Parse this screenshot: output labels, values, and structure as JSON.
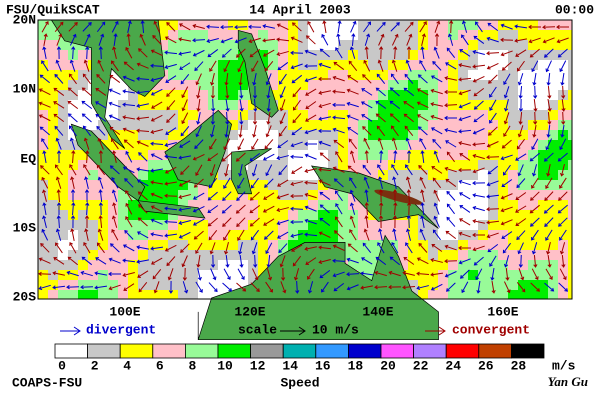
{
  "header": {
    "left": "FSU/QuikSCAT",
    "center": "14 April 2003",
    "right": "00:00"
  },
  "lat_labels": [
    "20N",
    "10N",
    "EQ",
    "10S",
    "20S"
  ],
  "lon_labels": [
    "100E",
    "120E",
    "140E",
    "160E"
  ],
  "legend": {
    "divergent": "divergent",
    "scale": "scale",
    "scale_value": "10 m/s",
    "convergent": "convergent"
  },
  "colorbar": {
    "values": [
      0,
      2,
      4,
      6,
      8,
      10,
      12,
      14,
      16,
      18,
      20,
      22,
      24,
      26,
      28
    ],
    "unit": "m/s",
    "label": "Speed",
    "colors": [
      "#ffffff",
      "#c8c8c8",
      "#ffff00",
      "#ffc0c8",
      "#98fb98",
      "#00ee00",
      "#999999",
      "#00b0b0",
      "#3399ff",
      "#0000cc",
      "#ff55ff",
      "#b080ff",
      "#ff0000",
      "#c04000",
      "#000000"
    ]
  },
  "footer": {
    "left": "COAPS-FSU",
    "right": "Yan Gu"
  }
}
